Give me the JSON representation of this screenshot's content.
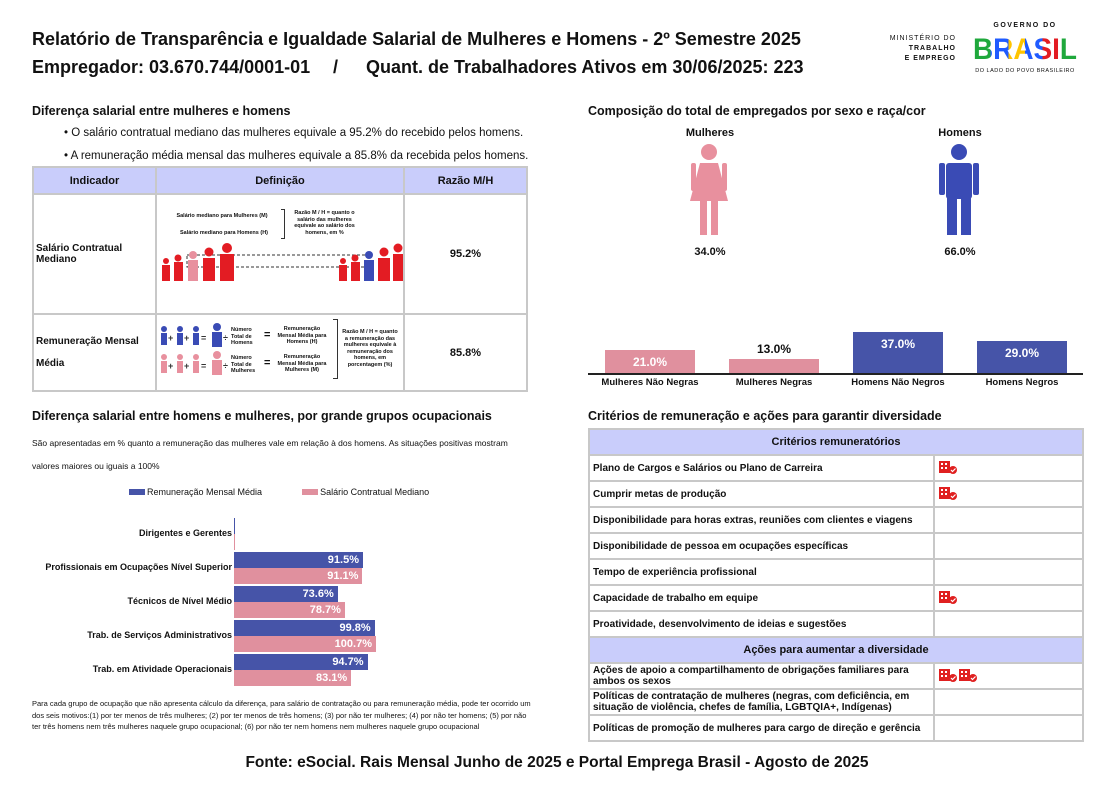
{
  "header": {
    "title": "Relatório de Transparência e Igualdade Salarial de Mulheres e Homens - 2º Semestre 2025",
    "employer": "Empregador: 03.670.744/0001-01",
    "separator": "/",
    "workers": "Quant. de Trabalhadores Ativos em 30/06/2025: 223"
  },
  "logos": {
    "ministry_line1": "MINISTÉRIO DO",
    "ministry_line2": "TRABALHO",
    "ministry_line3": "E EMPREGO",
    "gov_top": "GOVERNO DO",
    "gov_word": "BRASIL",
    "gov_bottom": "DO LADO DO POVO BRASILEIRO"
  },
  "salary_diff": {
    "title": "Diferença salarial entre mulheres e homens",
    "bullets": [
      "• O salário contratual mediano das mulheres equivale a 95.2% do recebido pelos homens.",
      "• A remuneração média mensal das mulheres equivale a 85.8% da recebida pelos homens."
    ],
    "headers": [
      "Indicador",
      "Definição",
      "Razão M/H"
    ],
    "rows": [
      {
        "indicator": "Salário Contratual Mediano",
        "value": "95.2%",
        "def_women": "Salário mediano para Mulheres (M)",
        "def_men": "Salário mediano para Homens (H)",
        "def_ratio": "Razão M / H = quanto o salário das mulheres equivale ao salário dos homens, em %"
      },
      {
        "indicator_line1": "Remuneração Mensal",
        "indicator_line2": "Média",
        "value": "85.8%",
        "total_men": "Número Total de Homens",
        "total_women": "Número Total de Mulheres",
        "avg_men": "Remuneração Mensal Média para Homens (H)",
        "avg_women": "Remuneração Mensal Média para Mulheres (M)",
        "def_ratio": "Razão M / H = quanto a remuneração das mulheres equivale à remuneração dos homens, em porcentagem (%)"
      }
    ]
  },
  "composition": {
    "title": "Composição do total de empregados por sexo e raça/cor",
    "women_label": "Mulheres",
    "men_label": "Homens",
    "women_pct": "34.0%",
    "men_pct": "66.0%"
  },
  "chart_data": [
    {
      "type": "bar",
      "categories": [
        "Mulheres Não Negras",
        "Mulheres Negras",
        "Homens Não Negros",
        "Homens Negros"
      ],
      "values": [
        21.0,
        13.0,
        37.0,
        29.0
      ],
      "labels": [
        "21.0%",
        "13.0%",
        "37.0%",
        "29.0%"
      ],
      "colors": [
        "#e0909e",
        "#e0909e",
        "#4654a8",
        "#4654a8"
      ]
    },
    {
      "type": "bar",
      "orientation": "horizontal",
      "title": "Diferença salarial entre homens e mulheres, por grande grupos ocupacionais",
      "subtitle": "São apresentadas em % quanto a remuneração das mulheres vale em relação à dos homens. As situações positivas mostram valores maiores ou iguais a 100%",
      "categories": [
        "Dirigentes e Gerentes",
        "Profissionais em Ocupações Nível Superior",
        "Técnicos de Nível Médio",
        "Trab. de Serviços Administrativos",
        "Trab. em Atividade Operacionais"
      ],
      "series": [
        {
          "name": "Remuneração Mensal Média",
          "color": "#4654a8",
          "values": [
            null,
            91.5,
            73.6,
            99.8,
            94.7
          ],
          "labels": [
            "",
            "91.5%",
            "73.6%",
            "99.8%",
            "94.7%"
          ]
        },
        {
          "name": "Salário Contratual Mediano",
          "color": "#e0909e",
          "values": [
            null,
            91.1,
            78.7,
            100.7,
            83.1
          ],
          "labels": [
            "",
            "91.1%",
            "78.7%",
            "100.7%",
            "83.1%"
          ]
        }
      ],
      "legend": "top"
    }
  ],
  "occ_note": "Para cada grupo de ocupação que não apresenta cálculo da diferença, para salário de contratação ou para remuneração média, pode ter ocorrido um dos seis motivos:(1) por ter menos de três mulheres; (2) por ter menos de três homens; (3) por não ter mulheres; (4) por não ter homens; (5) por não ter três homens nem três mulheres naquele grupo ocupacional; (6) por não ter nem homens nem mulheres naquele grupo ocupacional",
  "criteria": {
    "title": "Critérios de remuneração e ações para garantir diversidade",
    "criteria_header": "Critérios remuneratórios",
    "criteria_rows": [
      {
        "label": "Plano de Cargos e Salários ou Plano de Carreira",
        "icons": 1
      },
      {
        "label": "Cumprir metas de produção",
        "icons": 1
      },
      {
        "label": "Disponibilidade para horas extras, reuniões com clientes e viagens",
        "icons": 0
      },
      {
        "label": "Disponibilidade de pessoa em ocupações específicas",
        "icons": 0
      },
      {
        "label": "Tempo de experiência profissional",
        "icons": 0
      },
      {
        "label": "Capacidade de trabalho em equipe",
        "icons": 1
      },
      {
        "label": "Proatividade, desenvolvimento de ideias e sugestões",
        "icons": 0
      }
    ],
    "actions_header": "Ações para aumentar a diversidade",
    "actions_rows": [
      {
        "label": "Ações de apoio a compartilhamento de obrigações familiares para ambos os sexos",
        "icons": 2
      },
      {
        "label": "Políticas de contratação de mulheres (negras, com deficiência, em situação de violência, chefes de família, LGBTQIA+, Indígenas)",
        "icons": 0
      },
      {
        "label": "Políticas de promoção de mulheres para cargo de direção e gerência",
        "icons": 0
      }
    ],
    "icon": "company-check-icon",
    "icon_color": "#e02020"
  },
  "footer": "Fonte: eSocial. Rais Mensal Junho de 2025 e Portal Emprega Brasil - Agosto de 2025"
}
